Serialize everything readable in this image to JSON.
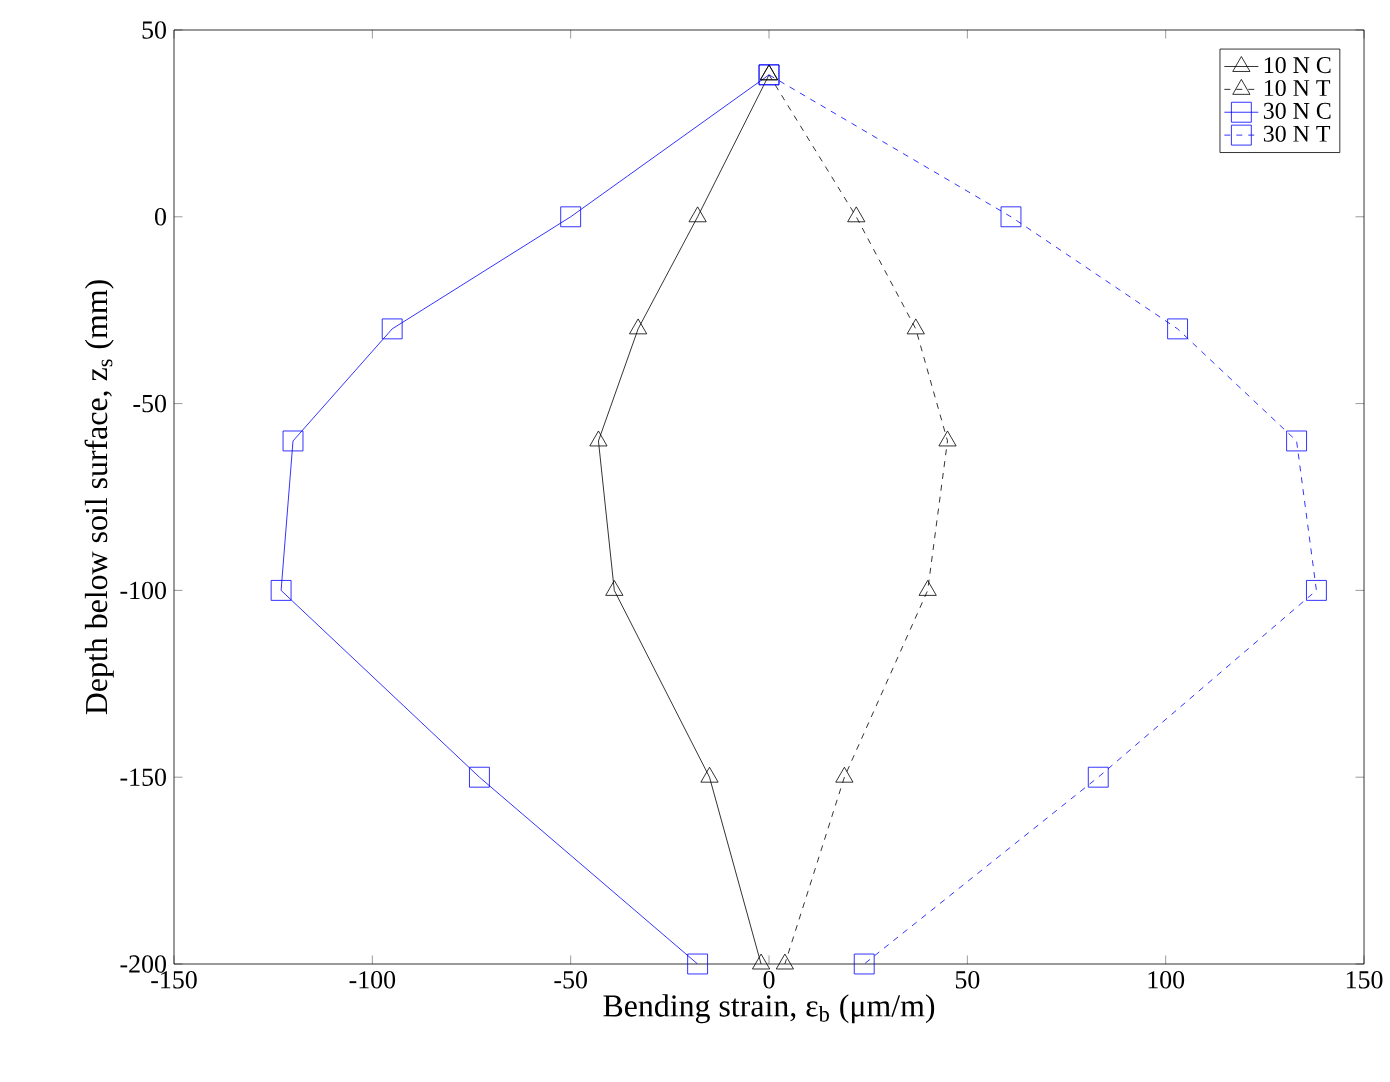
{
  "chart_data": {
    "type": "line",
    "xlabel": "Bending strain, ε$_{b}$ (μm/m)",
    "ylabel": "Depth below soil surface, z$_{s}$ (mm)",
    "xlim": [
      -150,
      150
    ],
    "ylim": [
      -200,
      50
    ],
    "xticks": [
      -150,
      -100,
      -50,
      0,
      50,
      100,
      150
    ],
    "yticks": [
      -200,
      -150,
      -100,
      -50,
      0,
      50
    ],
    "legend": "top right",
    "series": [
      {
        "name": "10 N C",
        "color": "#000000",
        "marker": "triangle",
        "line_style": "solid",
        "x": [
          0,
          -18,
          -33,
          -43,
          -39,
          -15,
          -2
        ],
        "values": [
          38,
          0,
          -30,
          -60,
          -100,
          -150,
          -200
        ]
      },
      {
        "name": "10 N T",
        "color": "#000000",
        "marker": "triangle",
        "line_style": "dashed",
        "x": [
          0,
          22,
          37,
          45,
          40,
          19,
          4
        ],
        "values": [
          38,
          0,
          -30,
          -60,
          -100,
          -150,
          -200
        ]
      },
      {
        "name": "30 N C",
        "color": "#0000ff",
        "marker": "square",
        "line_style": "solid",
        "x": [
          0,
          -50,
          -95,
          -120,
          -123,
          -73,
          -18
        ],
        "values": [
          38,
          0,
          -30,
          -60,
          -100,
          -150,
          -200
        ]
      },
      {
        "name": "30 N T",
        "color": "#0000ff",
        "marker": "square",
        "line_style": "dashed",
        "x": [
          0,
          61,
          103,
          133,
          138,
          83,
          24
        ],
        "values": [
          38,
          0,
          -30,
          -60,
          -100,
          -150,
          -200
        ]
      }
    ]
  }
}
